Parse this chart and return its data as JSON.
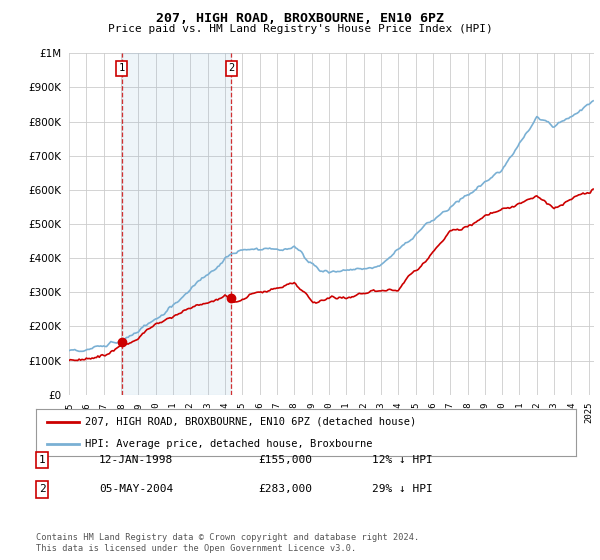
{
  "title": "207, HIGH ROAD, BROXBOURNE, EN10 6PZ",
  "subtitle": "Price paid vs. HM Land Registry's House Price Index (HPI)",
  "legend_line1": "207, HIGH ROAD, BROXBOURNE, EN10 6PZ (detached house)",
  "legend_line2": "HPI: Average price, detached house, Broxbourne",
  "transaction1_date": "12-JAN-1998",
  "transaction1_price": "£155,000",
  "transaction1_hpi": "12% ↓ HPI",
  "transaction1_year": 1998.04,
  "transaction1_value": 155000,
  "transaction2_date": "05-MAY-2004",
  "transaction2_price": "£283,000",
  "transaction2_hpi": "29% ↓ HPI",
  "transaction2_year": 2004.37,
  "transaction2_value": 283000,
  "footer": "Contains HM Land Registry data © Crown copyright and database right 2024.\nThis data is licensed under the Open Government Licence v3.0.",
  "red_line_color": "#cc0000",
  "blue_line_color": "#7ab0d4",
  "shade_color": "#ddeeff",
  "dashed_line_color": "#cc0000",
  "marker_box_color": "#cc0000",
  "background_color": "#ffffff",
  "grid_color": "#cccccc",
  "ylim": [
    0,
    1000000
  ],
  "xlim_start": 1995.0,
  "xlim_end": 2025.3
}
